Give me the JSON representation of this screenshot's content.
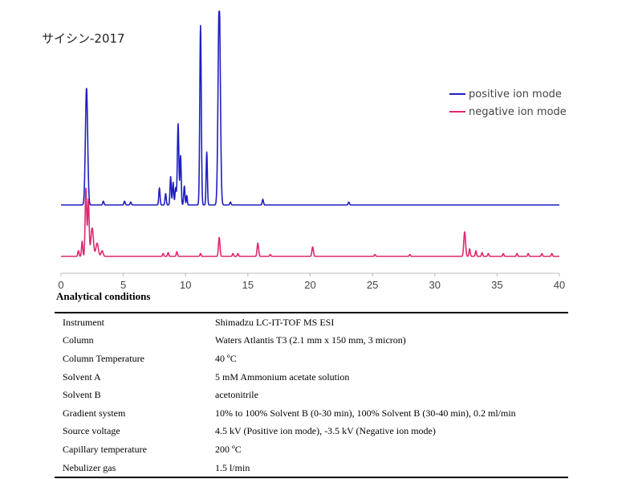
{
  "sample_title": "サイシン-2017",
  "legend": [
    {
      "label": "positive ion mode",
      "color": "#1f1fbf"
    },
    {
      "label": "negative ion mode",
      "color": "#e0286e"
    }
  ],
  "chart_data": {
    "type": "line",
    "title": "",
    "xlabel": "",
    "ylabel": "",
    "xlim": [
      0,
      40
    ],
    "x_ticks": [
      "0",
      "5",
      "10",
      "15",
      "20",
      "25",
      "30",
      "35",
      "40"
    ],
    "grid": false,
    "legend_position": "top-right",
    "series": [
      {
        "name": "positive ion mode",
        "color": "#1f1fbf",
        "baseline_level": 1,
        "peaks": [
          {
            "x": 2.05,
            "h": 0.62,
            "w": 0.09
          },
          {
            "x": 3.4,
            "h": 0.02,
            "w": 0.05
          },
          {
            "x": 5.1,
            "h": 0.02,
            "w": 0.05
          },
          {
            "x": 5.6,
            "h": 0.015,
            "w": 0.05
          },
          {
            "x": 7.9,
            "h": 0.09,
            "w": 0.05
          },
          {
            "x": 8.4,
            "h": 0.06,
            "w": 0.05
          },
          {
            "x": 8.8,
            "h": 0.15,
            "w": 0.05
          },
          {
            "x": 9.0,
            "h": 0.12,
            "w": 0.05
          },
          {
            "x": 9.2,
            "h": 0.09,
            "w": 0.05
          },
          {
            "x": 9.4,
            "h": 0.43,
            "w": 0.06
          },
          {
            "x": 9.6,
            "h": 0.26,
            "w": 0.05
          },
          {
            "x": 9.9,
            "h": 0.1,
            "w": 0.05
          },
          {
            "x": 10.1,
            "h": 0.05,
            "w": 0.04
          },
          {
            "x": 11.2,
            "h": 0.95,
            "w": 0.06
          },
          {
            "x": 11.7,
            "h": 0.28,
            "w": 0.05
          },
          {
            "x": 12.7,
            "h": 1.1,
            "w": 0.09
          },
          {
            "x": 13.6,
            "h": 0.015,
            "w": 0.05
          },
          {
            "x": 16.2,
            "h": 0.03,
            "w": 0.05
          },
          {
            "x": 23.1,
            "h": 0.015,
            "w": 0.05
          }
        ]
      },
      {
        "name": "negative ion mode",
        "color": "#e0286e",
        "baseline_level": 0,
        "peaks": [
          {
            "x": 1.4,
            "h": 0.03,
            "w": 0.05
          },
          {
            "x": 1.7,
            "h": 0.08,
            "w": 0.05
          },
          {
            "x": 2.0,
            "h": 0.36,
            "w": 0.06
          },
          {
            "x": 2.2,
            "h": 0.3,
            "w": 0.06
          },
          {
            "x": 2.5,
            "h": 0.15,
            "w": 0.1
          },
          {
            "x": 2.9,
            "h": 0.07,
            "w": 0.1
          },
          {
            "x": 3.3,
            "h": 0.03,
            "w": 0.08
          },
          {
            "x": 8.2,
            "h": 0.015,
            "w": 0.05
          },
          {
            "x": 8.6,
            "h": 0.02,
            "w": 0.05
          },
          {
            "x": 9.3,
            "h": 0.025,
            "w": 0.05
          },
          {
            "x": 11.2,
            "h": 0.015,
            "w": 0.05
          },
          {
            "x": 12.7,
            "h": 0.1,
            "w": 0.06
          },
          {
            "x": 13.8,
            "h": 0.015,
            "w": 0.05
          },
          {
            "x": 14.2,
            "h": 0.015,
            "w": 0.05
          },
          {
            "x": 15.8,
            "h": 0.07,
            "w": 0.06
          },
          {
            "x": 16.8,
            "h": 0.01,
            "w": 0.05
          },
          {
            "x": 20.2,
            "h": 0.05,
            "w": 0.06
          },
          {
            "x": 25.2,
            "h": 0.01,
            "w": 0.05
          },
          {
            "x": 28.0,
            "h": 0.01,
            "w": 0.05
          },
          {
            "x": 32.4,
            "h": 0.13,
            "w": 0.07
          },
          {
            "x": 32.8,
            "h": 0.04,
            "w": 0.05
          },
          {
            "x": 33.3,
            "h": 0.03,
            "w": 0.05
          },
          {
            "x": 33.8,
            "h": 0.02,
            "w": 0.05
          },
          {
            "x": 34.3,
            "h": 0.015,
            "w": 0.05
          },
          {
            "x": 35.5,
            "h": 0.015,
            "w": 0.05
          },
          {
            "x": 36.6,
            "h": 0.015,
            "w": 0.05
          },
          {
            "x": 37.5,
            "h": 0.015,
            "w": 0.05
          },
          {
            "x": 38.6,
            "h": 0.015,
            "w": 0.05
          },
          {
            "x": 39.4,
            "h": 0.015,
            "w": 0.05
          }
        ]
      }
    ]
  },
  "conditions": {
    "title": "Analytical conditions",
    "rows": [
      {
        "label": "Instrument",
        "value": "Shimadzu LC-IT-TOF MS ESI"
      },
      {
        "label": "Column",
        "value": "Waters Atlantis T3 (2.1 mm x 150 mm, 3 micron)"
      },
      {
        "label": "Column Temperature",
        "value": "40 ºC"
      },
      {
        "label": "Solvent A",
        "value": "5 mM Ammonium acetate solution"
      },
      {
        "label": "Solvent B",
        "value": "acetonitrile"
      },
      {
        "label": "Gradient system",
        "value": "10% to 100% Solvent B (0-30 min), 100% Solvent B (30-40 min), 0.2 ml/min"
      },
      {
        "label": "Source voltage",
        "value": "4.5 kV (Positive ion mode), -3.5 kV (Negative ion mode)"
      },
      {
        "label": "Capillary temperature",
        "value": "200 ºC"
      },
      {
        "label": "Nebulizer gas",
        "value": "1.5 l/min"
      }
    ]
  }
}
